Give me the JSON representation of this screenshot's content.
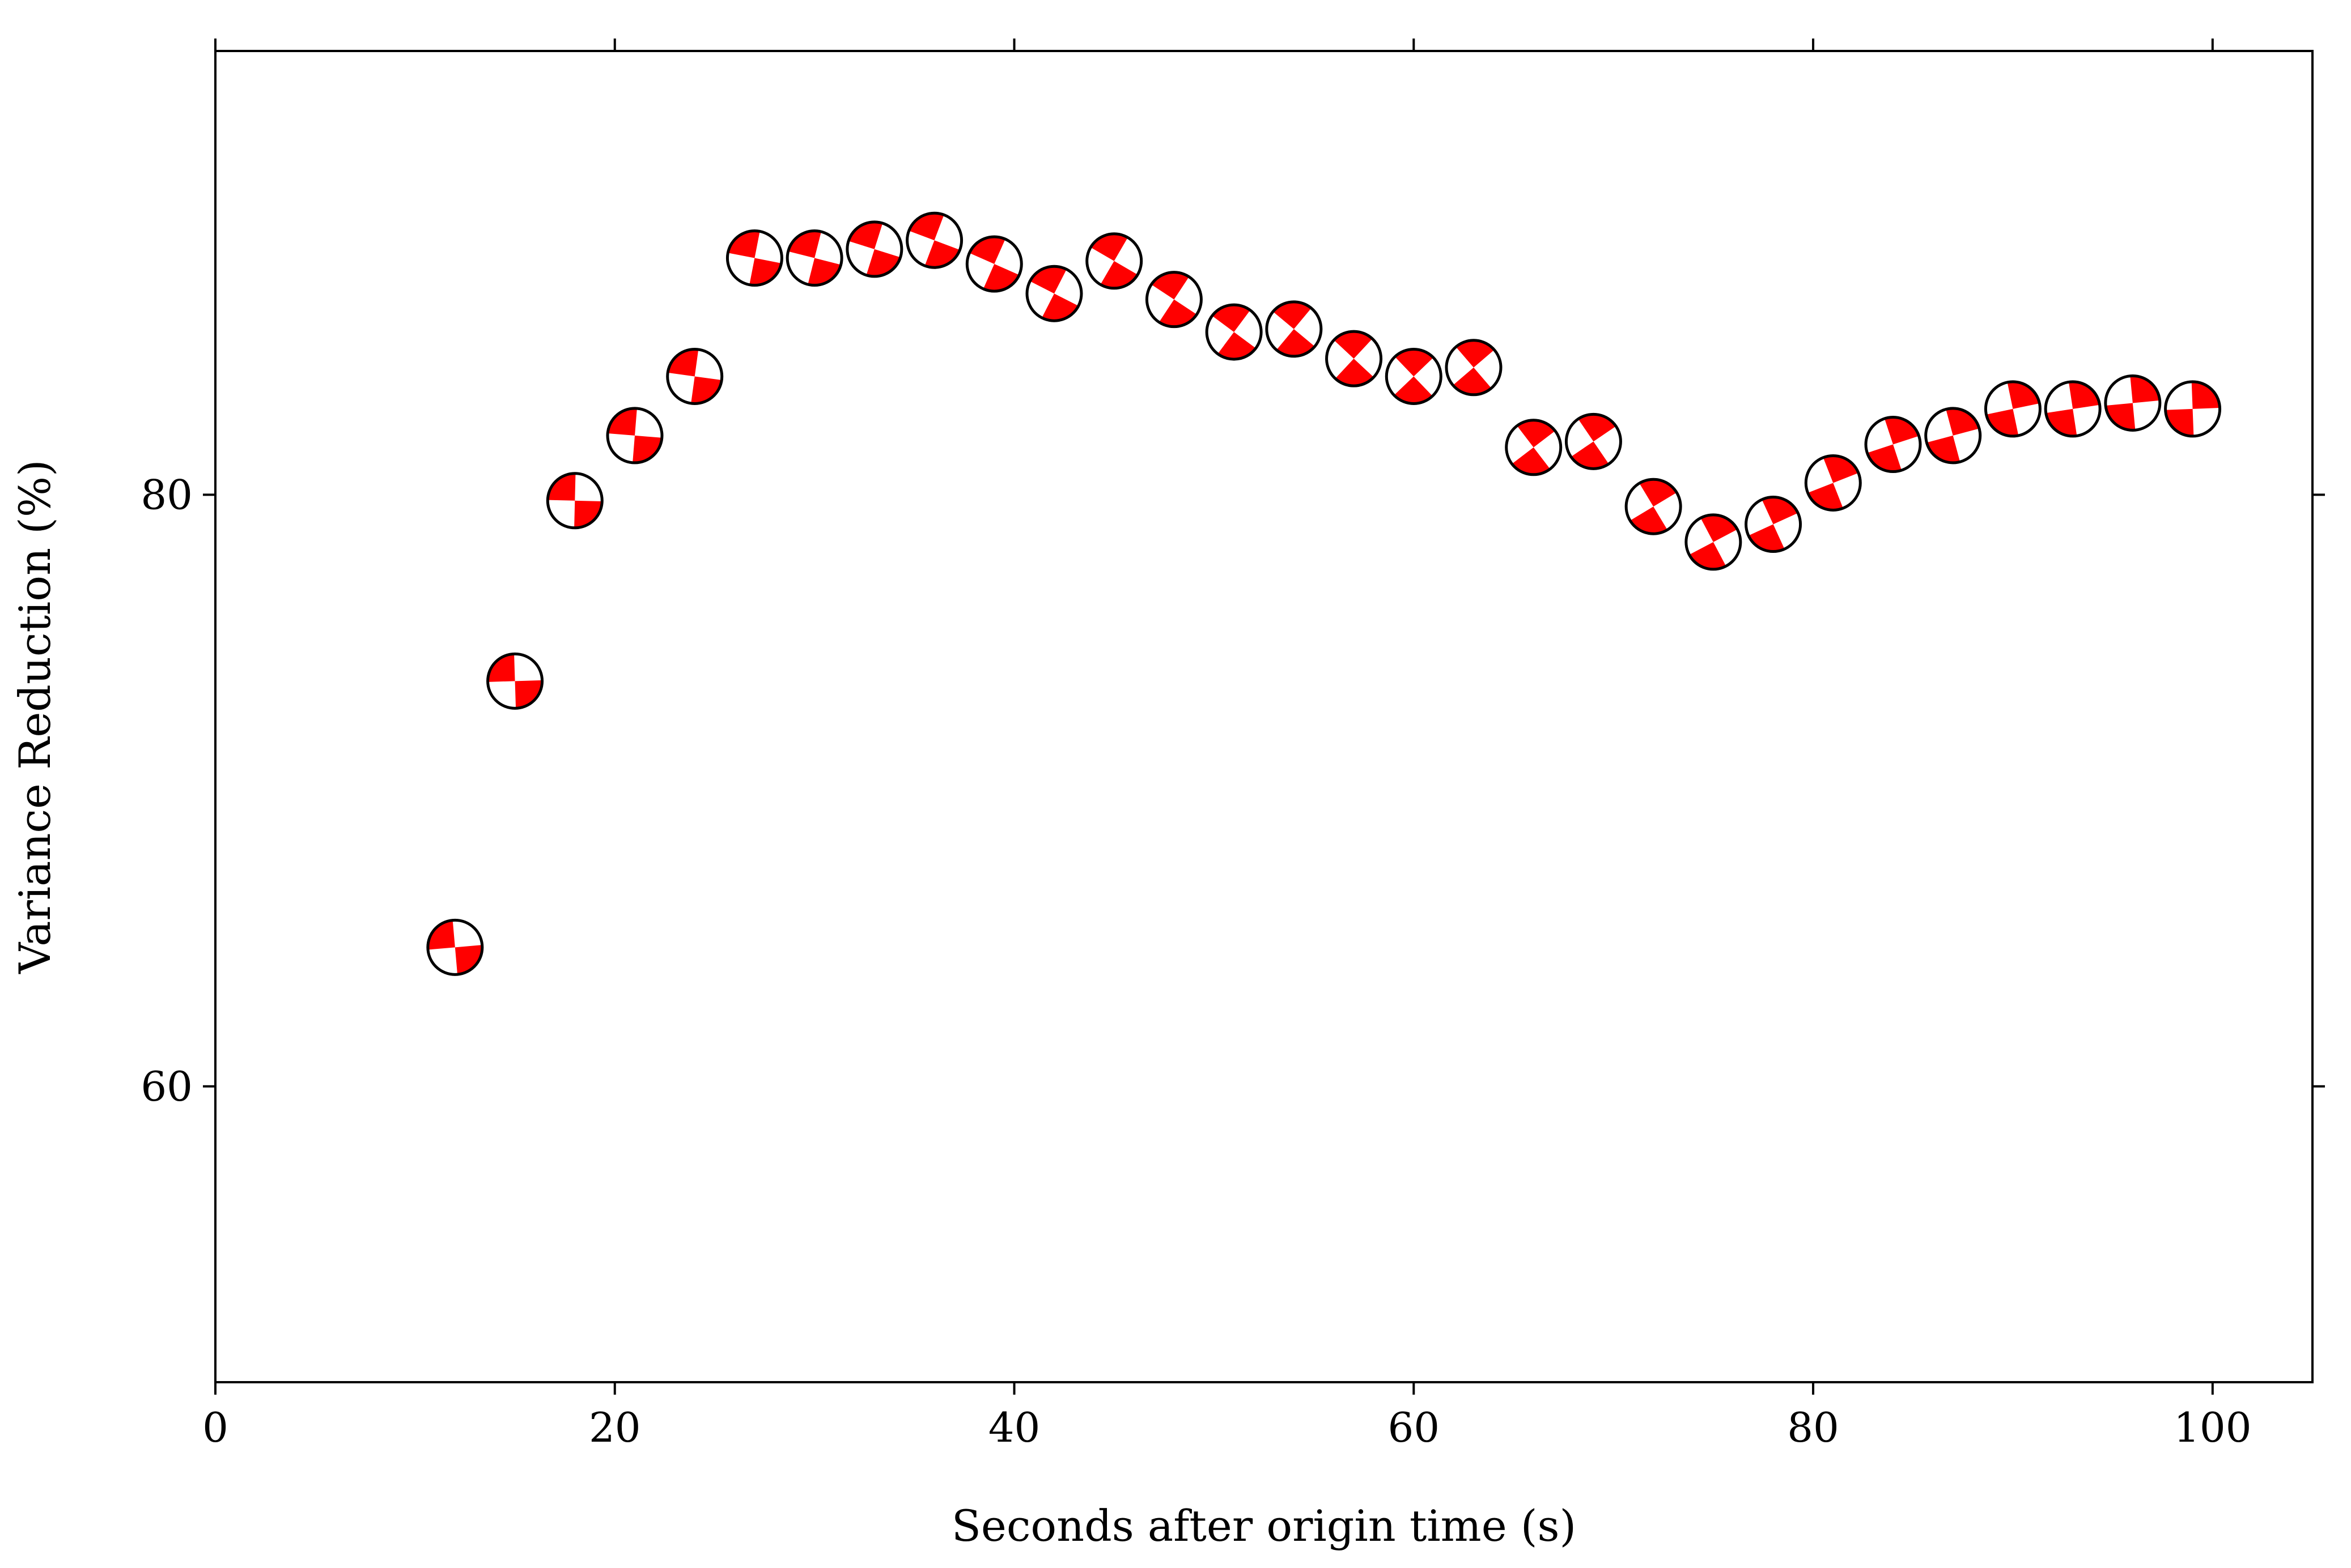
{
  "chart_data": {
    "type": "scatter",
    "marker": "beachball",
    "title": "",
    "xlabel": "Seconds after origin time (s)",
    "ylabel": "Variance Reduction (%)",
    "xlim": [
      0,
      105
    ],
    "ylim": [
      50,
      95
    ],
    "xticks": [
      0,
      20,
      40,
      60,
      80,
      100
    ],
    "yticks": [
      60,
      80
    ],
    "grid": false,
    "colors": {
      "compressional": "#ff0000",
      "dilatational": "#ffffff",
      "outline": "#000000"
    },
    "series": [
      {
        "x": [
          12,
          15,
          18,
          21,
          24,
          27,
          30,
          33,
          36,
          39,
          42,
          45,
          48,
          51,
          54,
          57,
          60,
          63,
          66,
          69,
          72,
          75,
          78,
          81,
          84,
          87,
          90,
          93,
          96,
          99
        ],
        "y": [
          64.7,
          73.7,
          79.8,
          82.0,
          84.0,
          88.0,
          88.0,
          88.3,
          88.6,
          87.8,
          86.8,
          87.9,
          86.6,
          85.5,
          85.6,
          84.6,
          84.0,
          84.3,
          81.6,
          81.8,
          79.6,
          78.4,
          79.0,
          80.4,
          81.7,
          82.0,
          82.9,
          82.9,
          83.1,
          82.9
        ]
      }
    ]
  }
}
